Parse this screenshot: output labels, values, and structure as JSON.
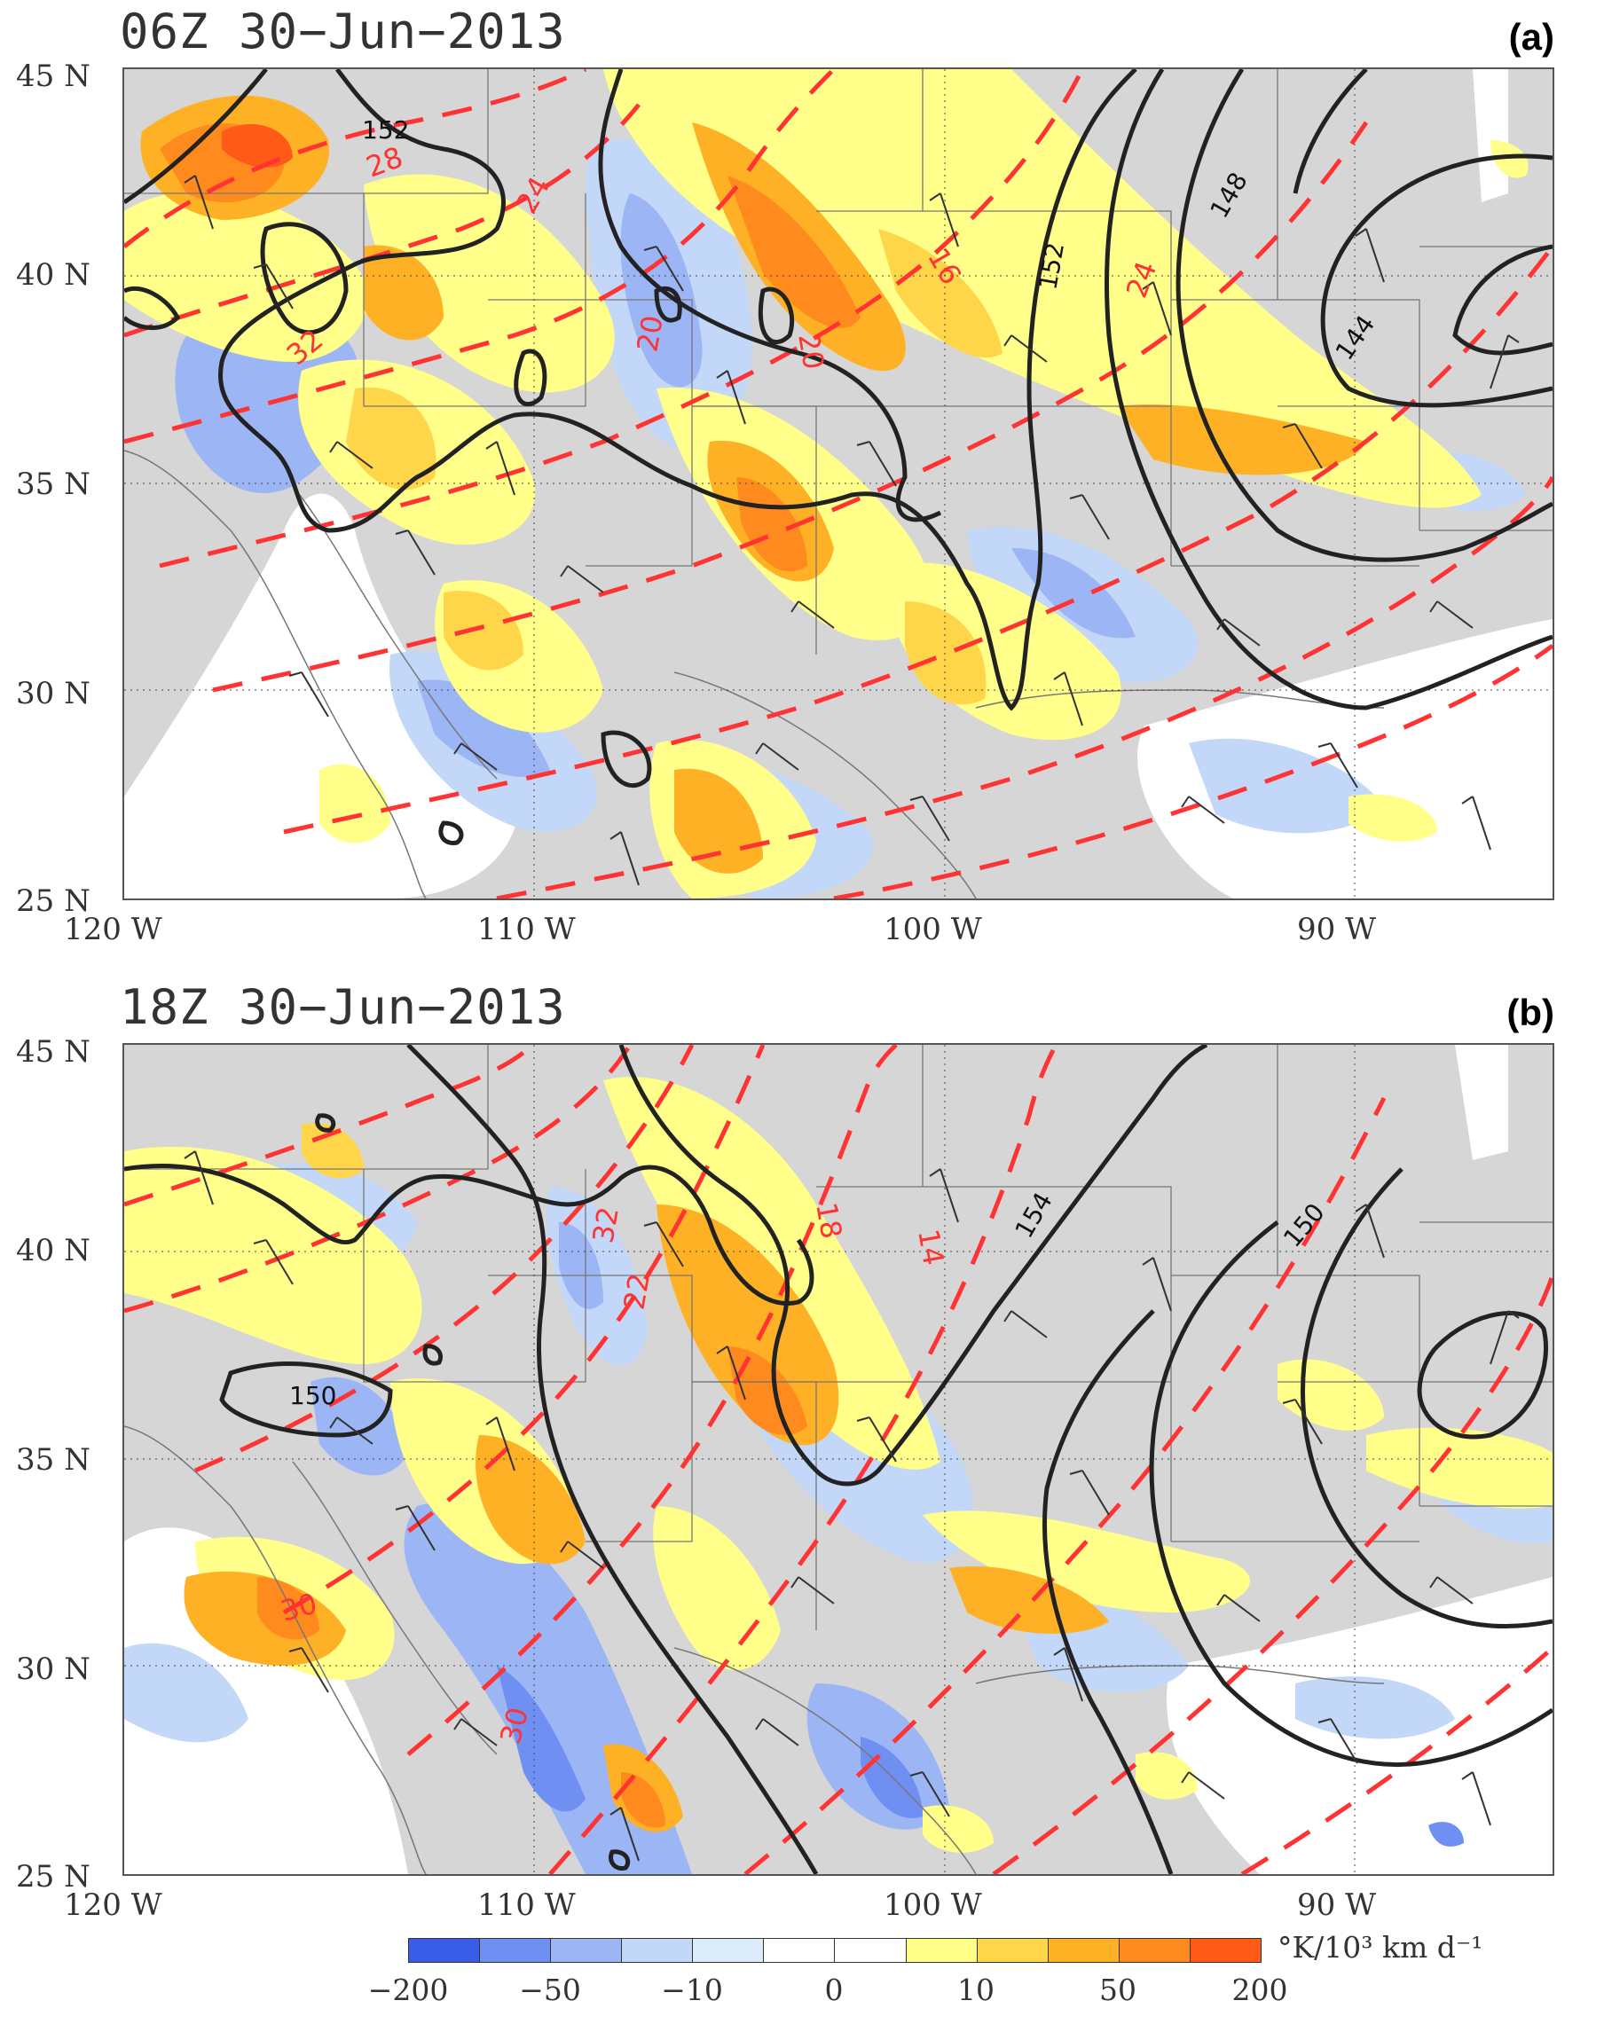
{
  "panels": [
    {
      "title": "06Z 30−Jun−2013",
      "label": "(a)",
      "contour_labels": [
        "152",
        "148",
        "144",
        "152",
        "28",
        "24",
        "20",
        "20",
        "16",
        "32",
        "24"
      ]
    },
    {
      "title": "18Z 30−Jun−2013",
      "label": "(b)",
      "contour_labels": [
        "154",
        "150",
        "150",
        "18",
        "14",
        "22",
        "32",
        "30",
        "30"
      ]
    }
  ],
  "lat_labels": [
    "45 N",
    "40 N",
    "35 N",
    "30 N",
    "25 N"
  ],
  "lon_labels": [
    "120 W",
    "110 W",
    "100 W",
    "90 W"
  ],
  "colorbar": {
    "ticks": [
      "−200",
      "−50",
      "−10",
      "0",
      "10",
      "50",
      "200"
    ],
    "units": "°K/10³ km d⁻¹",
    "colors": [
      "#3a5de8",
      "#6f8ff2",
      "#9bb5f5",
      "#c3d7f8",
      "#dcecfa",
      "#ffffff",
      "#ffffff",
      "#ffff8a",
      "#ffd64a",
      "#ffb126",
      "#ff8a1e",
      "#ff5a16"
    ]
  },
  "colors": {
    "land": "#d6d6d6",
    "height_contour": "#222222",
    "temp_contour": "#ff3333",
    "wind_barb": "#333333",
    "state_border": "#777777"
  }
}
